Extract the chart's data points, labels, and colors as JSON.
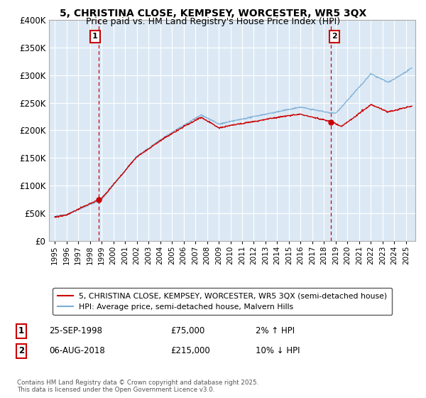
{
  "title": "5, CHRISTINA CLOSE, KEMPSEY, WORCESTER, WR5 3QX",
  "subtitle": "Price paid vs. HM Land Registry's House Price Index (HPI)",
  "title_fontsize": 10,
  "subtitle_fontsize": 9,
  "ylim": [
    0,
    400000
  ],
  "background_color": "#ffffff",
  "plot_bg_color": "#dce9f5",
  "grid_color": "#ffffff",
  "house_color": "#cc0000",
  "hpi_color": "#7aadd4",
  "legend_label_house": "5, CHRISTINA CLOSE, KEMPSEY, WORCESTER, WR5 3QX (semi-detached house)",
  "legend_label_hpi": "HPI: Average price, semi-detached house, Malvern Hills",
  "ann1_num": "1",
  "ann1_x": 1998.73,
  "ann1_price": 75000,
  "ann1_date": "25-SEP-1998",
  "ann1_price_str": "£75,000",
  "ann1_pct": "2% ↑ HPI",
  "ann2_num": "2",
  "ann2_x": 2018.59,
  "ann2_price": 215000,
  "ann2_date": "06-AUG-2018",
  "ann2_price_str": "£215,000",
  "ann2_pct": "10% ↓ HPI",
  "footer": "Contains HM Land Registry data © Crown copyright and database right 2025.\nThis data is licensed under the Open Government Licence v3.0.",
  "xmin": 1994.5,
  "xmax": 2025.8,
  "seed": 42
}
